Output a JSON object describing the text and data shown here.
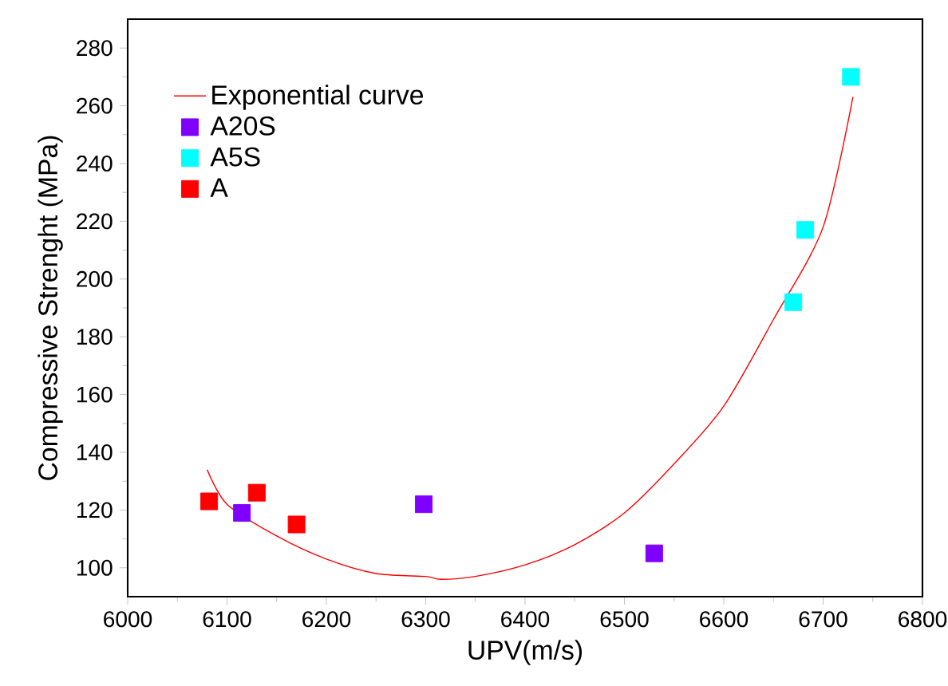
{
  "chart_data": {
    "type": "scatter",
    "xlabel": "UPV(m/s)",
    "ylabel": "Compressive Strenght (MPa)",
    "xlim": [
      6000,
      6800
    ],
    "xticks": [
      6000,
      6100,
      6200,
      6300,
      6400,
      6500,
      6600,
      6700,
      6800
    ],
    "ylim": [
      90,
      290
    ],
    "yticks": [
      100,
      120,
      140,
      160,
      180,
      200,
      220,
      240,
      260,
      280
    ],
    "legend": "top left",
    "series": [
      {
        "name": "Exponential curve",
        "type": "line",
        "marker": "none",
        "color": "#ff0000",
        "x": [
          6080,
          6100,
          6150,
          6200,
          6250,
          6300,
          6315,
          6350,
          6400,
          6450,
          6500,
          6550,
          6600,
          6650,
          6700,
          6730
        ],
        "values": [
          134,
          122,
          111,
          103,
          98,
          97,
          96,
          97,
          101,
          108,
          119,
          136,
          156,
          186,
          218,
          263
        ]
      },
      {
        "name": "A20S",
        "marker": "square",
        "color": "#8000ff",
        "x": [
          6115,
          6298,
          6530
        ],
        "values": [
          119,
          122,
          105
        ]
      },
      {
        "name": "A5S",
        "marker": "square",
        "color": "#00ffff",
        "x": [
          6670,
          6682,
          6728
        ],
        "values": [
          192,
          217,
          270
        ]
      },
      {
        "name": "A",
        "marker": "square",
        "color": "#ff0000",
        "x": [
          6082,
          6130,
          6170
        ],
        "values": [
          123,
          126,
          115
        ]
      }
    ]
  }
}
